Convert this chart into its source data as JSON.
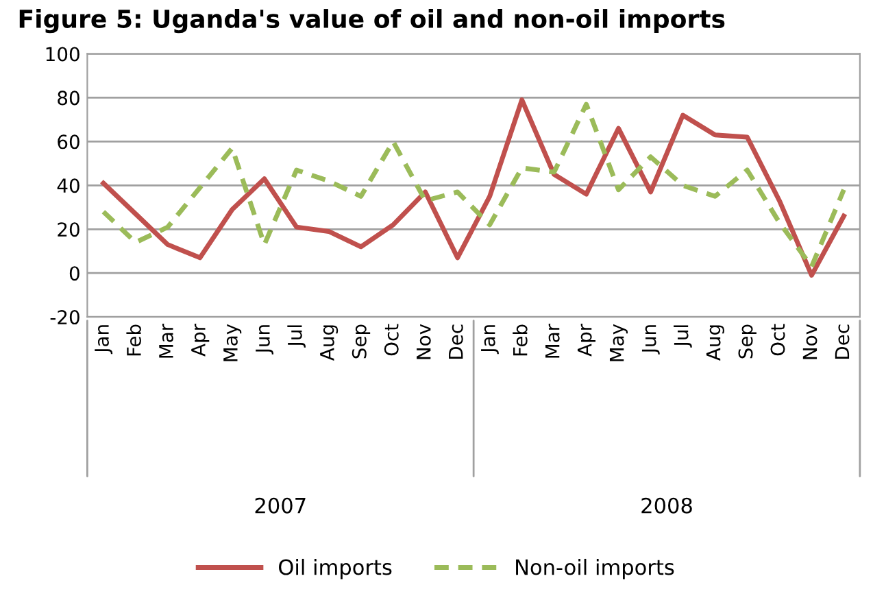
{
  "chart_data": {
    "type": "line",
    "title": "Figure 5: Uganda's value of oil and non-oil imports",
    "categories": [
      "Jan",
      "Feb",
      "Mar",
      "Apr",
      "May",
      "Jun",
      "Jul",
      "Aug",
      "Sep",
      "Oct",
      "Nov",
      "Dec",
      "Jan",
      "Feb",
      "Mar",
      "Apr",
      "May",
      "Jun",
      "Jul",
      "Aug",
      "Sep",
      "Oct",
      "Nov",
      "Dec"
    ],
    "series": [
      {
        "name": "Oil imports",
        "color": "#c0504d",
        "line_style": "solid",
        "values": [
          41,
          27,
          13,
          7,
          29,
          43,
          21,
          19,
          12,
          22,
          37,
          7,
          35,
          79,
          45,
          36,
          66,
          37,
          72,
          63,
          62,
          33,
          -1,
          26
        ]
      },
      {
        "name": "Non-oil imports",
        "color": "#9bbb59",
        "line_style": "dashed",
        "values": [
          28,
          14,
          21,
          39,
          57,
          13,
          47,
          42,
          35,
          60,
          33,
          37,
          22,
          48,
          46,
          77,
          38,
          53,
          40,
          35,
          47,
          23,
          3,
          38
        ]
      }
    ],
    "annotations": [
      "2007",
      "2008"
    ],
    "ylim": [
      -20,
      100
    ],
    "yticks": [
      -20,
      0,
      20,
      40,
      60,
      80,
      100
    ],
    "grid": "y",
    "legend": "bottom",
    "marker": "none"
  }
}
